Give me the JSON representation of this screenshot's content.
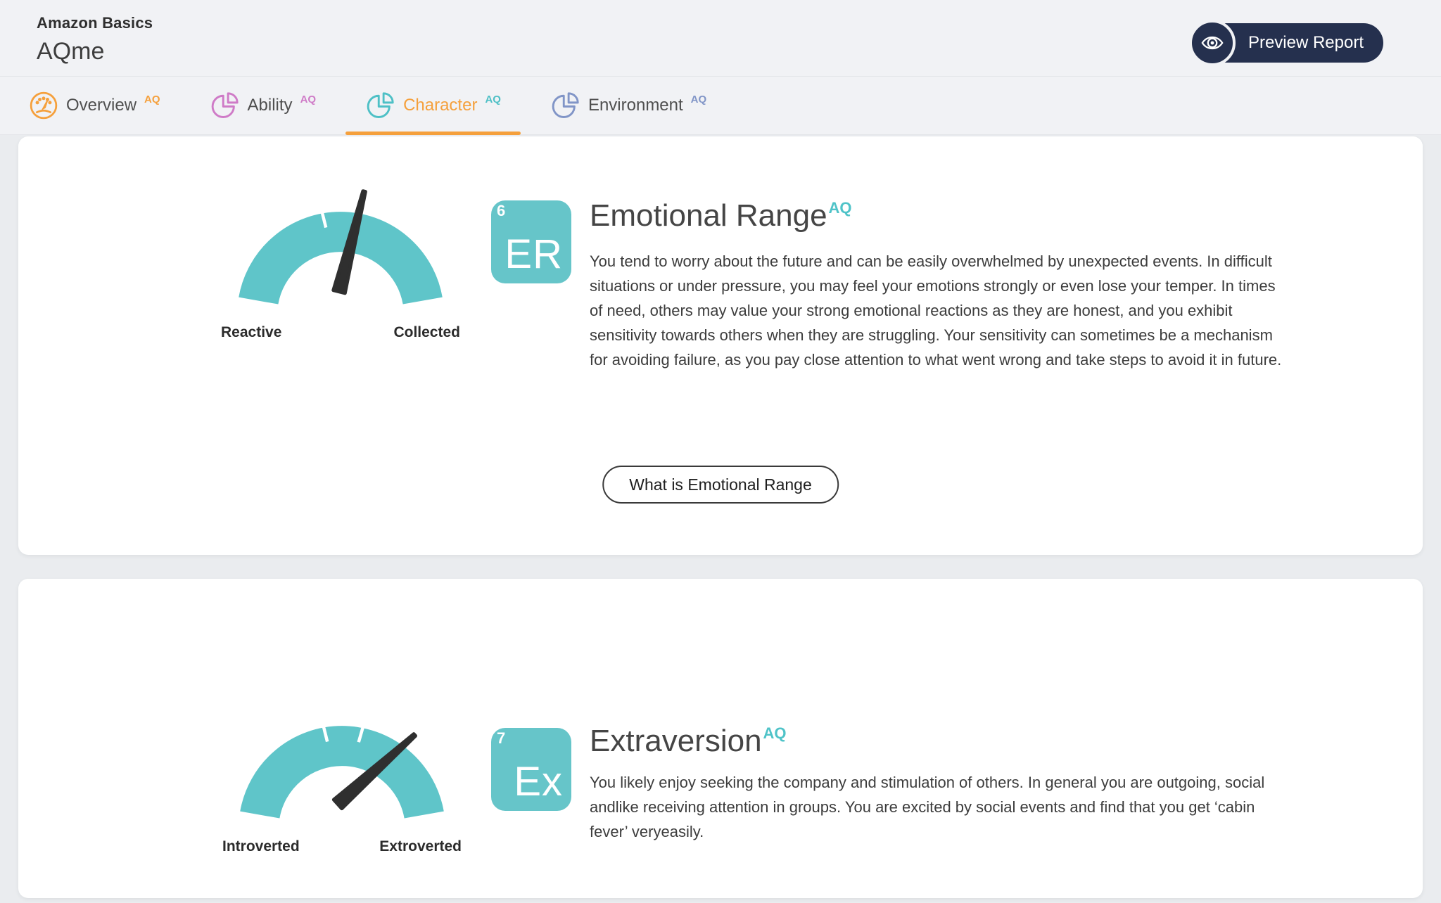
{
  "header": {
    "brand": "Amazon Basics",
    "product": "AQme",
    "preview_button_label": "Preview Report"
  },
  "tabs": [
    {
      "label": "Overview",
      "sup": "AQ",
      "icon": "speedometer-icon",
      "active": false
    },
    {
      "label": "Ability",
      "sup": "AQ",
      "icon": "pie-chart-icon",
      "active": false
    },
    {
      "label": "Character",
      "sup": "AQ",
      "icon": "pie-chart-icon",
      "active": true
    },
    {
      "label": "Environment",
      "sup": "AQ",
      "icon": "pie-chart-icon",
      "active": false
    }
  ],
  "cards": [
    {
      "number": "6",
      "code": "ER",
      "title": "Emotional Range",
      "sup": "AQ",
      "gauge": {
        "left_label": "Reactive",
        "right_label": "Collected",
        "needle_angle_deg": 76,
        "segments": 3
      },
      "body": "You tend to worry about the future and can be easily overwhelmed by unexpected events. In difficult situations or under pressure, you may feel your emotions strongly or even lose your temper. In times of need, others may value your strong emotional reactions as they are honest, and you exhibit sensitivity towards others when they are struggling. Your sensitivity can sometimes be a mechanism for avoiding failure, as you pay close attention to what went wrong and take steps to avoid it in future.",
      "action_label": "What is Emotional Range"
    },
    {
      "number": "7",
      "code": "Ex",
      "title": "Extraversion",
      "sup": "AQ",
      "gauge": {
        "left_label": "Introverted",
        "right_label": "Extroverted",
        "needle_angle_deg": 42,
        "segments": 3
      },
      "body": "You likely enjoy seeking the company and stimulation of others. In general you are outgoing, social andlike receiving attention in groups. You are excited by social events and find that you get ‘cabin fever’ veryeasily."
    }
  ],
  "theme": {
    "teal": "#5fc5c9",
    "orange": "#f5a03c",
    "pink": "#cf7bc7",
    "blue": "#8195c7",
    "navy": "#25304e",
    "needle": "#2f2f2f",
    "page_bg": "#eaecef",
    "card_bg": "#ffffff"
  }
}
